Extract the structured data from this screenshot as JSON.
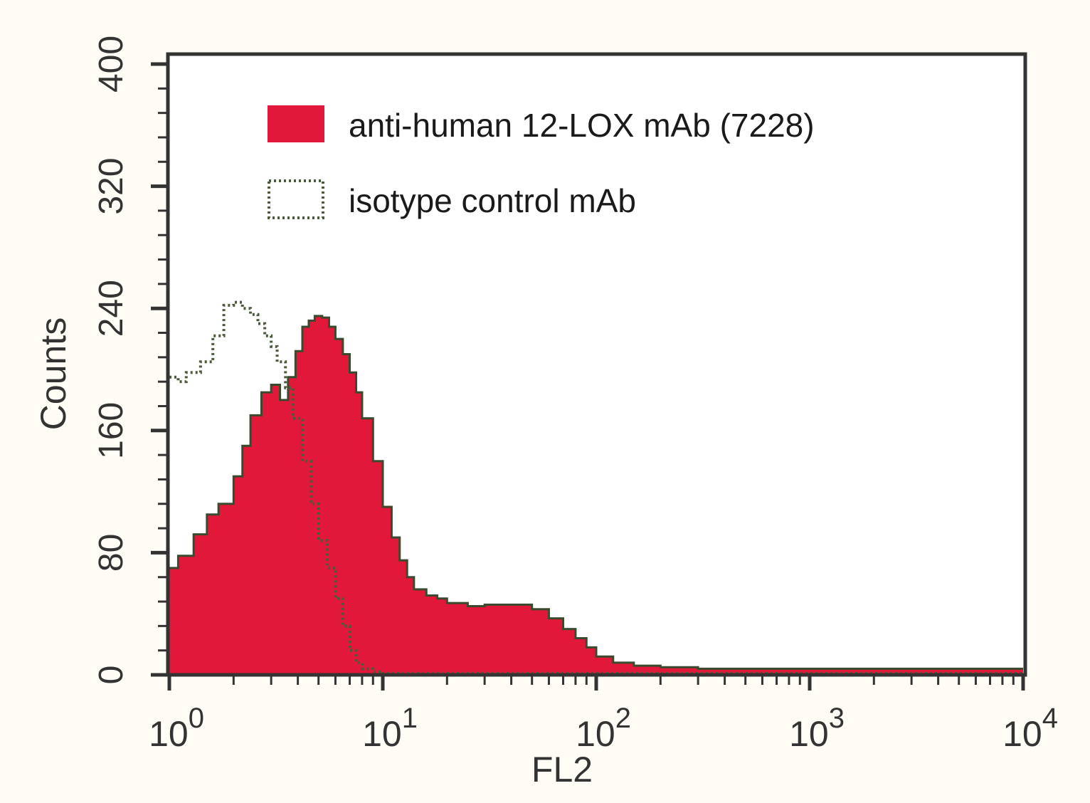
{
  "chart_data": {
    "type": "area",
    "xlabel": "FL2",
    "ylabel": "Counts",
    "x_scale": "log",
    "xlim": [
      1,
      10000
    ],
    "ylim": [
      0,
      400
    ],
    "x_ticks": [
      {
        "value": 1,
        "base": "10",
        "exp": "0"
      },
      {
        "value": 10,
        "base": "10",
        "exp": "1"
      },
      {
        "value": 100,
        "base": "10",
        "exp": "2"
      },
      {
        "value": 1000,
        "base": "10",
        "exp": "3"
      },
      {
        "value": 10000,
        "base": "10",
        "exp": "4"
      }
    ],
    "y_ticks": [
      0,
      80,
      160,
      240,
      320,
      400
    ],
    "legend_position": "top",
    "colors": {
      "fill": "#e2183a",
      "outline": "#3a4a2e",
      "control": "#4a5a3a",
      "axis": "#333333"
    },
    "series": [
      {
        "name": "anti-human 12-LOX mAb (7228)",
        "style": "filled",
        "x": [
          1,
          1.1,
          1.3,
          1.5,
          1.7,
          2.0,
          2.2,
          2.4,
          2.7,
          3.0,
          3.3,
          3.6,
          3.9,
          4.2,
          4.5,
          4.8,
          5.2,
          5.6,
          6.0,
          6.5,
          7.0,
          7.5,
          8.0,
          9.0,
          10,
          11,
          12,
          13,
          14,
          16,
          18,
          20,
          25,
          30,
          40,
          50,
          60,
          70,
          80,
          90,
          100,
          120,
          150,
          200,
          300,
          500,
          1000,
          2000,
          5000,
          10000
        ],
        "y": [
          70,
          78,
          92,
          105,
          112,
          130,
          150,
          170,
          185,
          190,
          180,
          195,
          212,
          228,
          232,
          235,
          234,
          228,
          220,
          210,
          198,
          185,
          168,
          140,
          110,
          90,
          75,
          64,
          56,
          52,
          50,
          47,
          45,
          46,
          46,
          43,
          37,
          30,
          24,
          18,
          12,
          8,
          6,
          5,
          4,
          4,
          4,
          4,
          4,
          4
        ]
      },
      {
        "name": "isotype control mAb",
        "style": "dotted",
        "x": [
          1,
          1.1,
          1.2,
          1.4,
          1.6,
          1.8,
          2.0,
          2.2,
          2.4,
          2.6,
          2.8,
          3.0,
          3.2,
          3.5,
          3.8,
          4.2,
          4.6,
          5.0,
          5.5,
          6.0,
          6.5,
          7.0,
          7.5,
          8.0,
          9.0,
          10,
          12,
          15,
          20,
          30,
          50,
          100,
          200,
          500,
          1000,
          5000,
          10000
        ],
        "y": [
          195,
          192,
          198,
          205,
          222,
          242,
          244,
          240,
          236,
          230,
          222,
          215,
          205,
          188,
          168,
          140,
          112,
          88,
          70,
          50,
          32,
          16,
          8,
          4,
          2,
          1,
          1,
          1,
          1,
          1,
          1,
          1,
          1,
          1,
          1,
          1,
          1
        ]
      }
    ]
  }
}
